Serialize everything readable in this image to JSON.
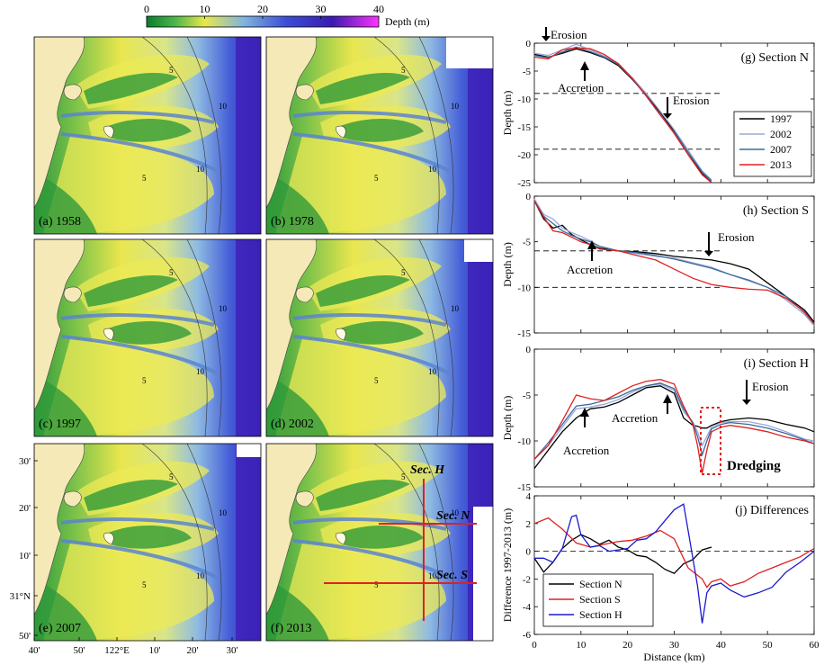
{
  "colorbar": {
    "ticks": [
      "0",
      "10",
      "20",
      "30",
      "40"
    ],
    "label": "Depth (m)",
    "stops": [
      "#0a7d2e",
      "#49b54a",
      "#e8e84a",
      "#7fb3e0",
      "#3b4fd6",
      "#3a1ab0",
      "#ff33ff"
    ]
  },
  "maps": {
    "labels": [
      "(a) 1958",
      "(b) 1978",
      "(c) 1997",
      "(d) 2002",
      "(e) 2007",
      "(f) 2013"
    ],
    "land_color": "#f5e9b8",
    "lat_ticks": [
      "30'",
      "20'",
      "10'",
      "31°N",
      "50'"
    ],
    "lon_ticks": [
      "40'",
      "50'",
      "122°E",
      "10'",
      "20'",
      "30'"
    ],
    "sections": {
      "h": "Sec. H",
      "n": "Sec. N",
      "s": "Sec. S"
    },
    "section_color": "#e02020",
    "contour_labels": [
      "5",
      "10"
    ]
  },
  "chart_data": [
    {
      "type": "line",
      "panel": "(g) Section N",
      "ylabel": "Depth (m)",
      "ylim": [
        -25,
        0
      ],
      "xlim": [
        0,
        60
      ],
      "yticks": [
        "0",
        "-5",
        "-10",
        "-15",
        "-20",
        "-25"
      ],
      "reference_depths": [
        -9,
        -19
      ],
      "annotations": [
        "Erosion",
        "Accretion",
        "Erosion"
      ],
      "legend": [
        "1997",
        "2002",
        "2007",
        "2013"
      ],
      "colors": [
        "#000000",
        "#9aa9d6",
        "#3a6b9b",
        "#e02020"
      ],
      "series": [
        {
          "name": "1997",
          "x": [
            0,
            3,
            6,
            9,
            12,
            15,
            18,
            21,
            24,
            27,
            30,
            33,
            36,
            38
          ],
          "y": [
            -2.0,
            -2.5,
            -1.8,
            -1.0,
            -1.7,
            -2.6,
            -4.0,
            -6.5,
            -9.3,
            -12.4,
            -15.8,
            -19.6,
            -23.4,
            -25.0
          ]
        },
        {
          "name": "2002",
          "x": [
            0,
            3,
            6,
            9,
            12,
            15,
            18,
            21,
            24,
            27,
            30,
            33,
            36,
            38
          ],
          "y": [
            -1.8,
            -2.2,
            -1.2,
            -0.2,
            -1.2,
            -2.3,
            -3.6,
            -6.2,
            -9.0,
            -12.2,
            -15.5,
            -19.2,
            -22.9,
            -24.5
          ]
        },
        {
          "name": "2007",
          "x": [
            0,
            3,
            6,
            9,
            12,
            15,
            18,
            21,
            24,
            27,
            30,
            33,
            36,
            38
          ],
          "y": [
            -2.2,
            -2.6,
            -1.6,
            -0.7,
            -1.5,
            -2.5,
            -3.8,
            -6.4,
            -9.5,
            -12.9,
            -16.0,
            -19.6,
            -23.1,
            -24.7
          ]
        },
        {
          "name": "2013",
          "x": [
            0,
            3,
            6,
            9,
            12,
            15,
            18,
            21,
            24,
            27,
            30,
            33,
            36,
            38
          ],
          "y": [
            -2.5,
            -2.8,
            -1.2,
            -0.8,
            -1.0,
            -2.0,
            -3.7,
            -6.3,
            -9.4,
            -12.8,
            -16.2,
            -20.0,
            -23.6,
            -25.0
          ]
        }
      ]
    },
    {
      "type": "line",
      "panel": "(h) Section S",
      "ylabel": "Depth (m)",
      "ylim": [
        -15,
        0
      ],
      "xlim": [
        0,
        60
      ],
      "yticks": [
        "0",
        "-5",
        "-10",
        "-15"
      ],
      "reference_depths": [
        -6,
        -10
      ],
      "annotations": [
        "Erosion",
        "Accretion"
      ],
      "colors": [
        "#000000",
        "#9aa9d6",
        "#3a6b9b",
        "#e02020"
      ],
      "series": [
        {
          "name": "1997",
          "x": [
            0,
            2,
            4,
            6,
            8,
            10,
            12,
            14,
            18,
            22,
            26,
            30,
            34,
            38,
            42,
            46,
            50,
            54,
            58,
            60
          ],
          "y": [
            -0.5,
            -2.5,
            -3.5,
            -3.2,
            -4.2,
            -4.8,
            -5.3,
            -5.7,
            -6.0,
            -6.1,
            -6.3,
            -6.6,
            -6.8,
            -7.0,
            -7.4,
            -8.0,
            -9.5,
            -11.0,
            -12.5,
            -13.8
          ]
        },
        {
          "name": "2002",
          "x": [
            0,
            2,
            4,
            6,
            8,
            10,
            12,
            14,
            18,
            22,
            26,
            30,
            34,
            38,
            42,
            46,
            50,
            54,
            58,
            60
          ],
          "y": [
            -0.3,
            -2.0,
            -2.5,
            -3.5,
            -4.0,
            -4.4,
            -4.9,
            -5.5,
            -6.0,
            -6.3,
            -6.6,
            -6.8,
            -7.3,
            -7.8,
            -8.6,
            -9.3,
            -10.0,
            -11.4,
            -13.0,
            -14.2
          ]
        },
        {
          "name": "2007",
          "x": [
            0,
            2,
            4,
            6,
            8,
            10,
            12,
            14,
            18,
            22,
            26,
            30,
            34,
            38,
            42,
            46,
            50,
            54,
            58,
            60
          ],
          "y": [
            -0.5,
            -2.2,
            -3.0,
            -3.8,
            -4.3,
            -4.7,
            -5.0,
            -5.5,
            -6.0,
            -6.2,
            -6.5,
            -6.9,
            -7.4,
            -7.9,
            -8.6,
            -9.2,
            -10.0,
            -11.0,
            -12.8,
            -14.0
          ]
        },
        {
          "name": "2013",
          "x": [
            0,
            2,
            4,
            6,
            8,
            10,
            12,
            14,
            18,
            22,
            26,
            30,
            34,
            38,
            42,
            46,
            50,
            54,
            58,
            60
          ],
          "y": [
            -0.5,
            -2.3,
            -3.8,
            -4.0,
            -4.5,
            -5.0,
            -5.3,
            -5.8,
            -6.0,
            -6.5,
            -7.0,
            -8.0,
            -9.0,
            -9.7,
            -10.0,
            -10.2,
            -10.3,
            -11.2,
            -12.7,
            -14.0
          ]
        }
      ]
    },
    {
      "type": "line",
      "panel": "(i) Section H",
      "ylabel": "Depth (m)",
      "ylim": [
        -15,
        0
      ],
      "xlim": [
        0,
        60
      ],
      "yticks": [
        "0",
        "-5",
        "-10",
        "-15"
      ],
      "annotations": [
        "Erosion",
        "Accretion",
        "Accretion"
      ],
      "dredging_label": "Dredging",
      "colors": [
        "#000000",
        "#9aa9d6",
        "#3a6b9b",
        "#e02020"
      ],
      "series": [
        {
          "name": "1997",
          "x": [
            0,
            3,
            6,
            9,
            12,
            15,
            18,
            21,
            24,
            27,
            30,
            32,
            34,
            35,
            36,
            37,
            38,
            40,
            42,
            46,
            50,
            54,
            58,
            60
          ],
          "y": [
            -13,
            -11,
            -9,
            -7.5,
            -6.5,
            -6.3,
            -5.8,
            -5.0,
            -4.2,
            -4.0,
            -4.8,
            -7.5,
            -8.3,
            -8.4,
            -8.6,
            -8.6,
            -8.3,
            -7.9,
            -7.7,
            -7.5,
            -7.7,
            -8.2,
            -8.6,
            -9
          ]
        },
        {
          "name": "2002",
          "x": [
            0,
            3,
            6,
            9,
            12,
            15,
            18,
            21,
            24,
            27,
            30,
            32,
            34,
            35,
            36,
            37,
            38,
            40,
            42,
            46,
            50,
            54,
            58,
            60
          ],
          "y": [
            -12,
            -10.5,
            -8.5,
            -6.5,
            -6.3,
            -6.0,
            -5.5,
            -4.7,
            -4.0,
            -3.8,
            -4.5,
            -6.8,
            -8.0,
            -9.0,
            -10.5,
            -9.5,
            -8.5,
            -8.0,
            -7.9,
            -7.9,
            -8.3,
            -9.0,
            -9.8,
            -10
          ]
        },
        {
          "name": "2007",
          "x": [
            0,
            3,
            6,
            9,
            12,
            15,
            18,
            21,
            24,
            27,
            30,
            32,
            34,
            35,
            36,
            37,
            38,
            40,
            42,
            46,
            50,
            54,
            58,
            60
          ],
          "y": [
            -12,
            -10.2,
            -8.2,
            -6.2,
            -6.0,
            -5.6,
            -5.2,
            -4.5,
            -4.0,
            -3.7,
            -4.3,
            -6.5,
            -8.0,
            -9.5,
            -11.5,
            -10.0,
            -8.7,
            -8.2,
            -8.0,
            -8.2,
            -8.6,
            -9.2,
            -9.9,
            -10.3
          ]
        },
        {
          "name": "2013",
          "x": [
            0,
            3,
            6,
            9,
            12,
            15,
            18,
            21,
            24,
            27,
            30,
            32,
            34,
            35,
            36,
            37,
            38,
            40,
            42,
            46,
            50,
            54,
            58,
            60
          ],
          "y": [
            -12,
            -10.5,
            -7.8,
            -5.0,
            -5.4,
            -5.6,
            -4.8,
            -4.0,
            -3.5,
            -3.3,
            -3.8,
            -6.2,
            -8.2,
            -10.5,
            -13.5,
            -11.0,
            -9.0,
            -8.5,
            -8.3,
            -8.6,
            -9.0,
            -9.6,
            -10.0,
            -10.3
          ]
        }
      ]
    },
    {
      "type": "line",
      "panel": "(j) Differences",
      "ylabel": "Difference 1997-2013 (m)",
      "xlabel": "Distance (km)",
      "ylim": [
        -6,
        4
      ],
      "xlim": [
        0,
        60
      ],
      "yticks": [
        "4",
        "2",
        "0",
        "-2",
        "-4",
        "-6"
      ],
      "xticks": [
        "0",
        "10",
        "20",
        "30",
        "40",
        "50",
        "60"
      ],
      "legend": [
        "Section N",
        "Section S",
        "Section H"
      ],
      "colors": [
        "#000000",
        "#e02020",
        "#1a1ad0"
      ],
      "series": [
        {
          "name": "Section N",
          "x": [
            0,
            2,
            4,
            6,
            8,
            10,
            12,
            14,
            16,
            18,
            20,
            22,
            24,
            26,
            28,
            30,
            32,
            34,
            36,
            38
          ],
          "y": [
            -0.5,
            -1.5,
            -0.8,
            0.2,
            0.8,
            1.2,
            0.9,
            0.5,
            0.8,
            0.3,
            0.1,
            -0.3,
            -0.4,
            -0.8,
            -1.3,
            -1.6,
            -0.9,
            -0.6,
            0.1,
            0.3
          ]
        },
        {
          "name": "Section S",
          "x": [
            0,
            3,
            6,
            9,
            12,
            15,
            18,
            21,
            24,
            27,
            30,
            33,
            36,
            37,
            38,
            40,
            42,
            45,
            48,
            51,
            54,
            57,
            60
          ],
          "y": [
            2.0,
            2.4,
            1.6,
            0.6,
            0.3,
            0.5,
            0.7,
            0.8,
            1.1,
            1.5,
            0.9,
            -1.2,
            -2.0,
            -2.6,
            -2.2,
            -2.0,
            -2.5,
            -2.2,
            -1.6,
            -1.2,
            -0.8,
            -0.4,
            0.2
          ]
        },
        {
          "name": "Section H",
          "x": [
            0,
            2,
            4,
            6,
            8,
            9,
            10,
            12,
            14,
            16,
            18,
            20,
            22,
            24,
            26,
            28,
            30,
            32,
            34,
            35,
            36,
            37,
            38,
            40,
            42,
            45,
            48,
            51,
            54,
            57,
            60
          ],
          "y": [
            -0.5,
            -0.5,
            -0.8,
            0.2,
            2.5,
            2.6,
            1.2,
            0.3,
            0.4,
            0.0,
            0.1,
            0.2,
            0.8,
            0.9,
            1.4,
            2.2,
            3.0,
            3.4,
            -0.5,
            -2.5,
            -5.2,
            -3.0,
            -2.5,
            -2.3,
            -2.8,
            -3.3,
            -3.0,
            -2.6,
            -1.5,
            -0.8,
            0.0
          ]
        }
      ]
    }
  ]
}
